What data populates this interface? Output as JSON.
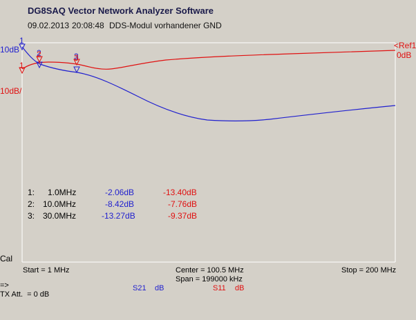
{
  "header": {
    "title": "DG8SAQ Vector Network Analyzer Software",
    "date": "09.02.2013",
    "time": "20:08:48",
    "description": "DDS-Modul vorhandener GND"
  },
  "scale": {
    "left_top": "10dB",
    "left_div": "10dB/",
    "right_ref": "<Ref1",
    "right_value": "0dB",
    "cal_label": "Cal"
  },
  "axis": {
    "start": "Start = 1 MHz",
    "center": "Center = 100.5 MHz",
    "span": "Span = 199000 kHz",
    "stop": "Stop = 200 MHz"
  },
  "markers": [
    {
      "num": "1:",
      "freq": "1.0MHz",
      "s21": "-2.06dB",
      "s11": "-13.40dB"
    },
    {
      "num": "2:",
      "freq": "10.0MHz",
      "s21": "-8.42dB",
      "s11": "-7.76dB"
    },
    {
      "num": "3:",
      "freq": "30.0MHz",
      "s21": "-13.27dB",
      "s11": "-9.37dB"
    }
  ],
  "marker_labels": [
    "1",
    "2",
    "3"
  ],
  "red_marker_labels": [
    "1",
    "2",
    "3"
  ],
  "legend": {
    "s21": "S21",
    "s21_unit": "dB",
    "s11": "S11",
    "s11_unit": "dB"
  },
  "footer": {
    "arrow": "=>",
    "tx_att": "TX Att.  = 0 dB"
  },
  "colors": {
    "s21": "#1f1fcf",
    "s11": "#e01010",
    "grid_frame": "#ffffff",
    "background": "#d4d0c8"
  }
}
